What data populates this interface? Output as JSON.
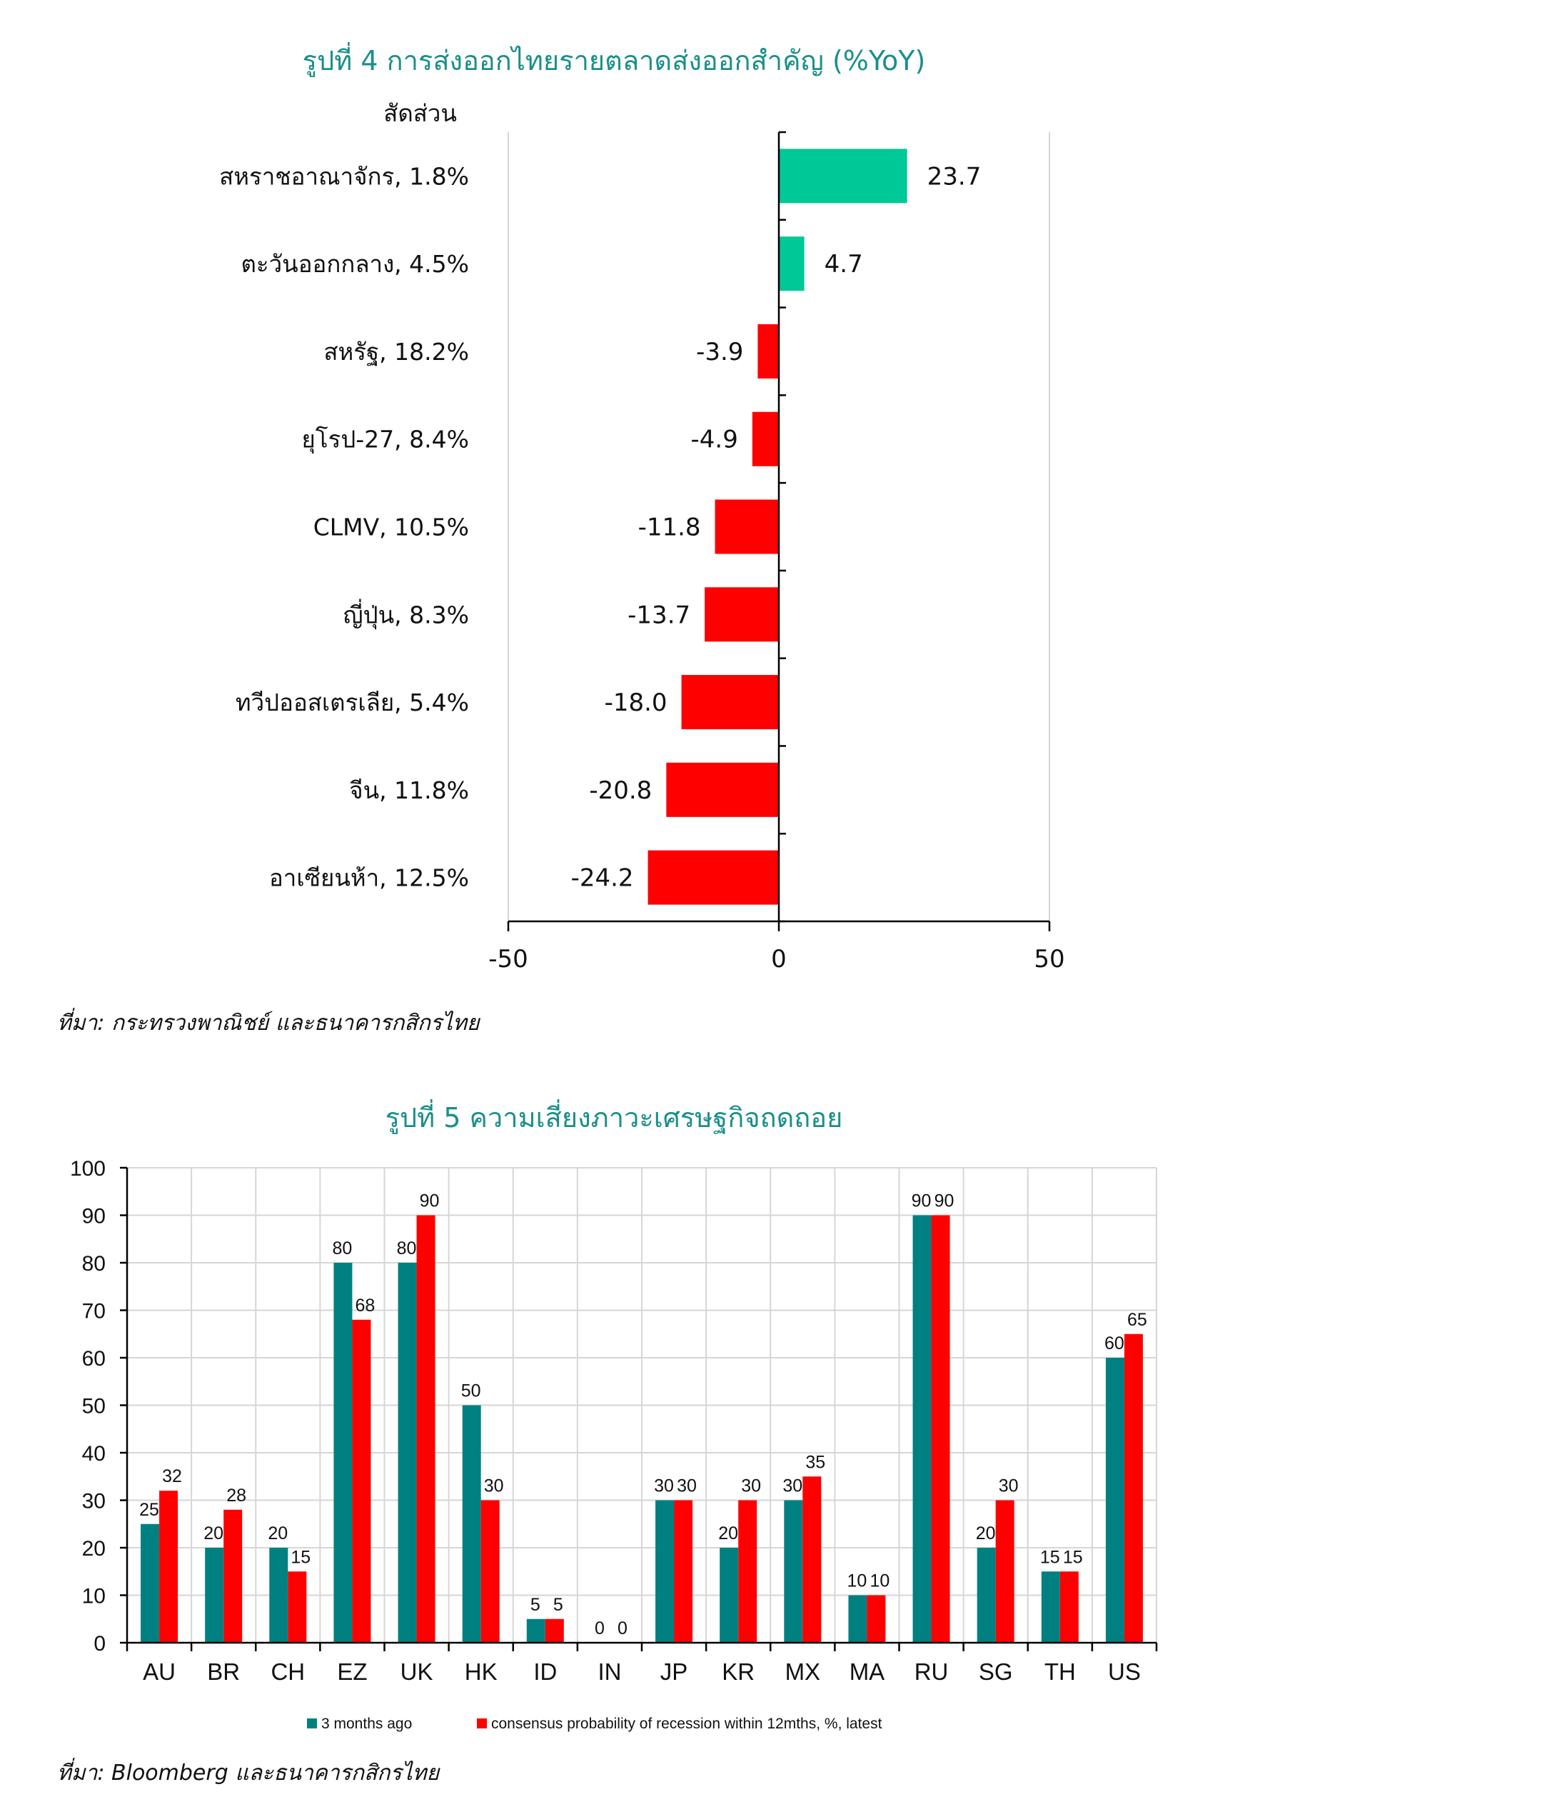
{
  "chart1": {
    "title": "รูปที่ 4 การส่งออกไทยรายตลาดส่งออกสำคัญ (%YoY)",
    "share_header": "สัดส่วน",
    "source": "ที่มา: กระทรวงพาณิชย์ และธนาคารกสิกรไทย",
    "colors": {
      "positive": "#00c896",
      "negative": "#ff0000"
    },
    "chart_data": {
      "type": "bar",
      "orientation": "horizontal",
      "categories": [
        "สหราชอาณาจักร, 1.8%",
        "ตะวันออกกลาง, 4.5%",
        "สหรัฐ, 18.2%",
        "ยุโรป-27, 8.4%",
        "CLMV, 10.5%",
        "ญี่ปุ่น, 8.3%",
        "ทวีปออสเตรเลีย, 5.4%",
        "จีน, 11.8%",
        "อาเซียนห้า, 12.5%"
      ],
      "values": [
        23.7,
        4.7,
        -3.9,
        -4.9,
        -11.8,
        -13.7,
        -18.0,
        -20.8,
        -24.2
      ],
      "value_labels": [
        "23.7",
        "4.7",
        "-3.9",
        "-4.9",
        "-11.8",
        "-13.7",
        "-18.0",
        "-20.8",
        "-24.2"
      ],
      "xlim": [
        -50,
        50
      ],
      "xticks": [
        "-50",
        "0",
        "50"
      ],
      "grid": true
    }
  },
  "chart2": {
    "title": "รูปที่ 5 ความเสี่ยงภาวะเศรษฐกิจถดถอย",
    "source": "ที่มา: Bloomberg และธนาคารกสิกรไทย",
    "colors": {
      "series1": "#008080",
      "series2": "#ff0000"
    },
    "chart_data": {
      "type": "bar",
      "categories": [
        "AU",
        "BR",
        "CH",
        "EZ",
        "UK",
        "HK",
        "ID",
        "IN",
        "JP",
        "KR",
        "MX",
        "MA",
        "RU",
        "SG",
        "TH",
        "US"
      ],
      "series": [
        {
          "name": "3 months ago",
          "values": [
            25,
            20,
            20,
            80,
            80,
            50,
            5,
            0,
            30,
            20,
            30,
            10,
            90,
            20,
            15,
            60
          ]
        },
        {
          "name": "consensus probability of recession within 12mths, %, latest",
          "values": [
            32,
            28,
            15,
            68,
            90,
            30,
            5,
            0,
            30,
            30,
            35,
            10,
            90,
            30,
            15,
            65
          ]
        }
      ],
      "ylim": [
        0,
        100
      ],
      "yticks": [
        "0",
        "10",
        "20",
        "30",
        "40",
        "50",
        "60",
        "70",
        "80",
        "90",
        "100"
      ],
      "legend": "bottom",
      "grid": true
    }
  }
}
